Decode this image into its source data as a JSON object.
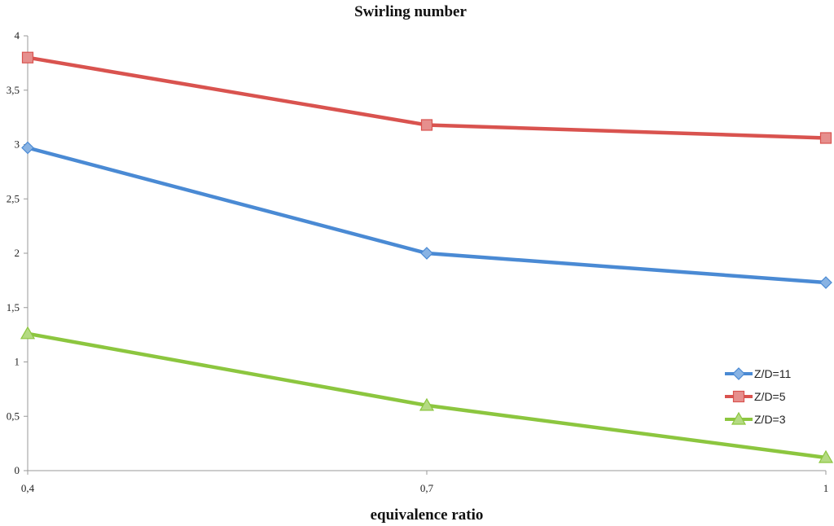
{
  "chart_data": {
    "type": "line",
    "title": "Swirling number",
    "xlabel": "equivalence ratio",
    "ylabel": "",
    "x": [
      0.4,
      0.7,
      1
    ],
    "x_tick_labels": [
      "0,4",
      "0,7",
      "1"
    ],
    "ylim": [
      0,
      4
    ],
    "y_ticks": [
      0,
      0.5,
      1,
      1.5,
      2,
      2.5,
      3,
      3.5,
      4
    ],
    "y_tick_labels": [
      "0",
      "0,5",
      "1",
      "1,5",
      "2",
      "2,5",
      "3",
      "3,5",
      "4"
    ],
    "grid": false,
    "legend_position": "right",
    "series": [
      {
        "name": "Z/D=11",
        "values": [
          2.97,
          2.0,
          1.73
        ],
        "color": "#4a8ad4",
        "marker": "diamond"
      },
      {
        "name": "Z/D=5",
        "values": [
          3.8,
          3.18,
          3.06
        ],
        "color": "#d9534f",
        "marker": "square"
      },
      {
        "name": "Z/D=3",
        "values": [
          1.26,
          0.6,
          0.12
        ],
        "color": "#8cc63f",
        "marker": "triangle"
      }
    ]
  }
}
